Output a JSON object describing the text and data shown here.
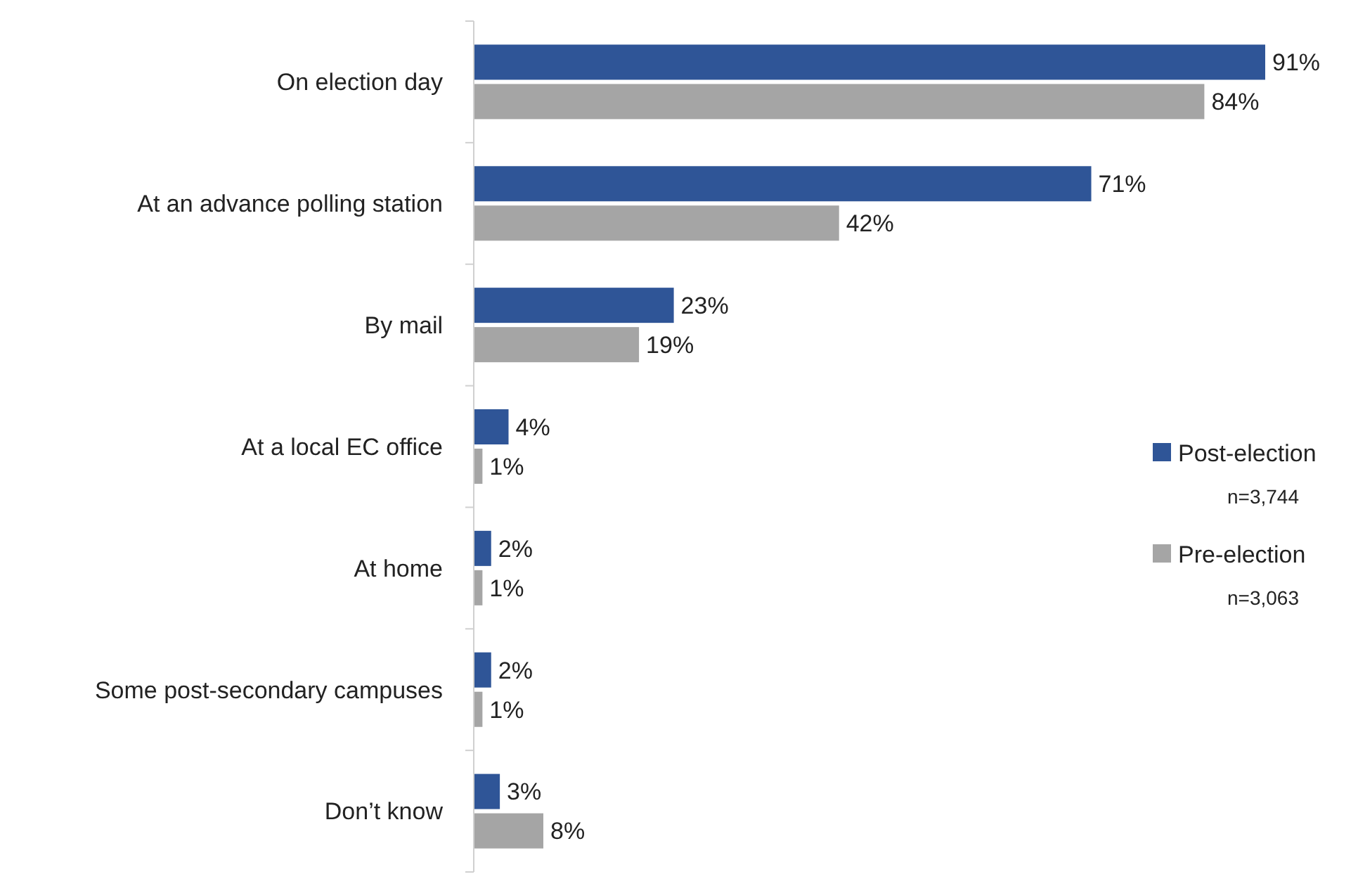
{
  "chart_data": {
    "type": "bar",
    "orientation": "horizontal",
    "categories": [
      "On election day",
      "At an advance polling station",
      "By mail",
      "At a local EC office",
      "At home",
      "Some post-secondary campuses",
      "Don’t know"
    ],
    "series": [
      {
        "name": "Post-election",
        "color": "#2f5597",
        "values": [
          91,
          71,
          23,
          4,
          2,
          2,
          3
        ],
        "value_labels": [
          "91%",
          "71%",
          "23%",
          "4%",
          "2%",
          "2%",
          "3%"
        ]
      },
      {
        "name": "Pre-election",
        "color": "#a5a5a5",
        "values": [
          84,
          42,
          19,
          1,
          1,
          1,
          8
        ],
        "value_labels": [
          "84%",
          "42%",
          "19%",
          "1%",
          "1%",
          "1%",
          "8%"
        ]
      }
    ],
    "legend": "right",
    "annotations": [
      "n=3,744",
      "n=3,063"
    ]
  }
}
